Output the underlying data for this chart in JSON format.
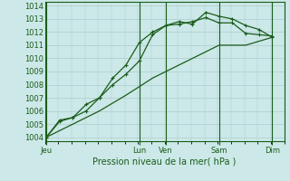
{
  "title": "Pression niveau de la mer( hPa )",
  "ylabel_ticks": [
    1004,
    1005,
    1006,
    1007,
    1008,
    1009,
    1010,
    1011,
    1012,
    1013,
    1014
  ],
  "ylim": [
    1003.7,
    1014.3
  ],
  "background_color": "#cce8e8",
  "grid_color": "#aacece",
  "line_color": "#1a5c1a",
  "xtick_labels": [
    "Jeu",
    "Lun",
    "Ven",
    "Sam",
    "Dim"
  ],
  "xtick_positions": [
    0,
    3.5,
    4.5,
    6.5,
    8.5
  ],
  "vline_positions": [
    0,
    3.5,
    4.5,
    6.5,
    8.5
  ],
  "xlim": [
    -0.05,
    8.9
  ],
  "series1_x": [
    0,
    0.5,
    1.0,
    1.5,
    2.0,
    2.5,
    3.0,
    3.5,
    4.0,
    4.5,
    5.0,
    5.5,
    6.0,
    6.5,
    7.0,
    7.5,
    8.0,
    8.5
  ],
  "series1_y": [
    1004.0,
    1005.2,
    1005.5,
    1006.0,
    1007.0,
    1008.0,
    1008.8,
    1009.8,
    1011.8,
    1012.5,
    1012.8,
    1012.6,
    1013.5,
    1013.2,
    1013.0,
    1012.5,
    1012.2,
    1011.6
  ],
  "series2_x": [
    0,
    0.5,
    1.0,
    1.5,
    2.0,
    2.5,
    3.0,
    3.5,
    4.0,
    4.5,
    5.0,
    5.5,
    6.0,
    6.5,
    7.0,
    7.5,
    8.0,
    8.5
  ],
  "series2_y": [
    1004.0,
    1005.3,
    1005.5,
    1006.5,
    1007.0,
    1008.5,
    1009.5,
    1011.2,
    1012.0,
    1012.5,
    1012.6,
    1012.8,
    1013.1,
    1012.7,
    1012.7,
    1011.9,
    1011.8,
    1011.7
  ],
  "series3_x": [
    0,
    1.0,
    2.0,
    3.0,
    4.0,
    4.5,
    5.5,
    6.5,
    7.5,
    8.5
  ],
  "series3_y": [
    1004.0,
    1005.0,
    1006.0,
    1007.2,
    1008.5,
    1009.0,
    1010.0,
    1011.0,
    1011.0,
    1011.6
  ]
}
